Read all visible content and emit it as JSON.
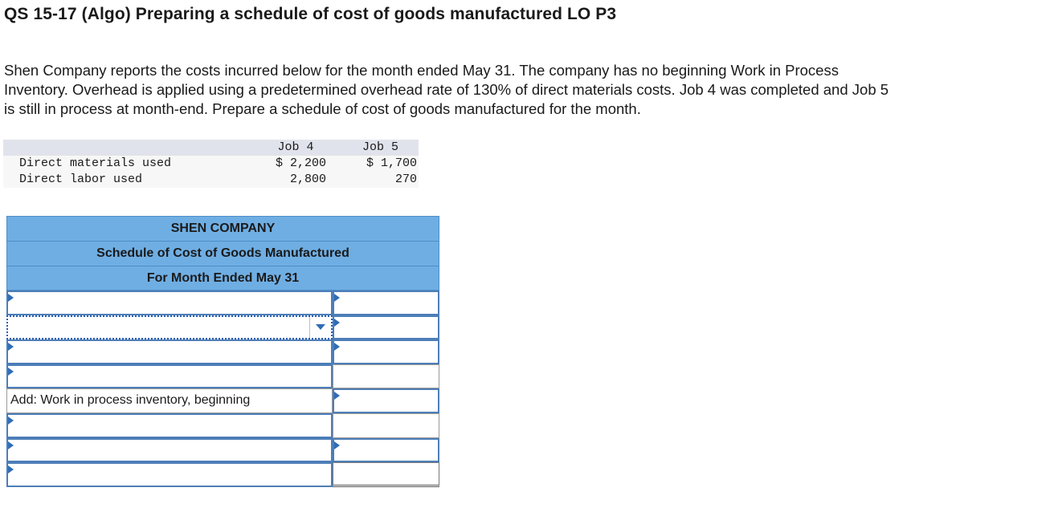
{
  "header": {
    "title": "QS 15-17 (Algo) Preparing a schedule of cost of goods manufactured LO P3"
  },
  "problem": {
    "line1": "Shen Company reports the costs incurred below for the month ended May 31. The company has no beginning Work in Process",
    "line2": "Inventory. Overhead is applied using a predetermined overhead rate of 130% of direct materials costs. Job 4 was completed and Job 5",
    "line3": "is still in process at month-end. Prepare a schedule of cost of goods manufactured for the month."
  },
  "jobs_table": {
    "columns": [
      "",
      "Job 4",
      "Job 5"
    ],
    "rows": [
      {
        "label": "Direct materials used",
        "job4": "$ 2,200",
        "job5": "$ 1,700"
      },
      {
        "label": "Direct labor used",
        "job4": "2,800",
        "job5": "270"
      }
    ]
  },
  "schedule": {
    "company": "SHEN COMPANY",
    "title": "Schedule of Cost of Goods Manufactured",
    "period": "For Month Ended May 31",
    "rows": [
      {
        "label": "",
        "amount": ""
      },
      {
        "label": "",
        "amount": ""
      },
      {
        "label": "",
        "amount": ""
      },
      {
        "label": "",
        "amount": ""
      },
      {
        "label": "Add: Work in process inventory, beginning",
        "amount": ""
      },
      {
        "label": "",
        "amount": ""
      },
      {
        "label": "",
        "amount": ""
      },
      {
        "label": "",
        "amount": ""
      }
    ]
  },
  "colors": {
    "header_fill": "#6faee3",
    "input_border": "#4d7eb8",
    "flag": "#2f6db7"
  }
}
